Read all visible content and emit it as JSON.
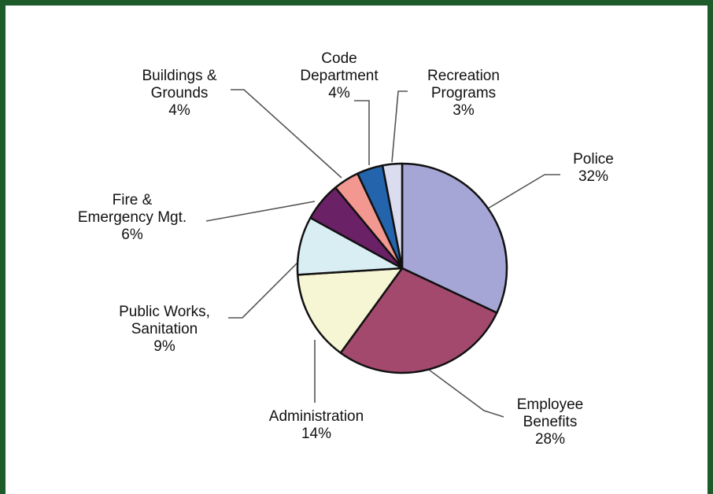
{
  "chart_data": {
    "type": "pie",
    "title": "",
    "colors": {
      "Police": "#a6a6d6",
      "Employee Benefits": "#a4496e",
      "Administration": "#f7f6d4",
      "Public Works, Sanitation": "#d9eef3",
      "Fire & Emergency Mgt.": "#6b2166",
      "Buildings & Grounds": "#f29890",
      "Code Department": "#2464ad",
      "Recreation Programs": "#dcdcf0"
    },
    "slices": [
      {
        "label_lines": [
          "Police"
        ],
        "value": 32,
        "pct_label": "32%"
      },
      {
        "label_lines": [
          "Employee",
          "Benefits"
        ],
        "value": 28,
        "pct_label": "28%"
      },
      {
        "label_lines": [
          "Administration"
        ],
        "value": 14,
        "pct_label": "14%"
      },
      {
        "label_lines": [
          "Public Works,",
          "Sanitation"
        ],
        "value": 9,
        "pct_label": "9%"
      },
      {
        "label_lines": [
          "Fire &",
          "Emergency Mgt."
        ],
        "value": 6,
        "pct_label": "6%"
      },
      {
        "label_lines": [
          "Buildings &",
          "Grounds"
        ],
        "value": 4,
        "pct_label": "4%"
      },
      {
        "label_lines": [
          "Code",
          "Department"
        ],
        "value": 4,
        "pct_label": "4%"
      },
      {
        "label_lines": [
          "Recreation",
          "Programs"
        ],
        "value": 3,
        "pct_label": "3%"
      }
    ]
  }
}
